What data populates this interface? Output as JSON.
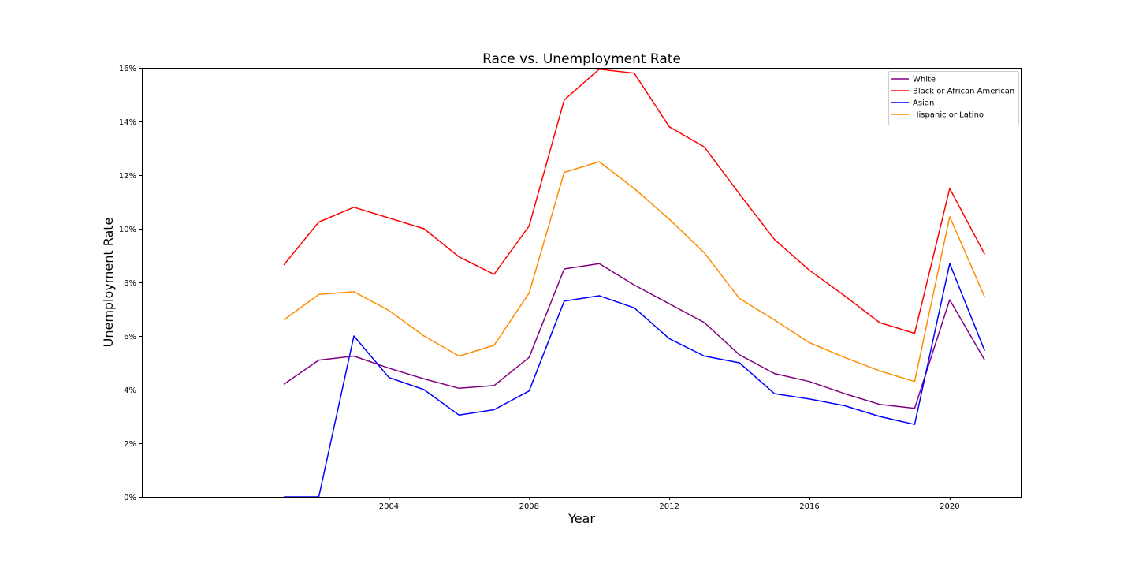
{
  "chart_data": {
    "type": "line",
    "title": "Race vs. Unemployment Rate",
    "xlabel": "Year",
    "ylabel": "Unemployment Rate",
    "xlim": [
      1996.95,
      2022.05
    ],
    "ylim": [
      0,
      16
    ],
    "x_ticks": [
      2004,
      2008,
      2012,
      2016,
      2020
    ],
    "y_ticks": [
      0,
      2,
      4,
      6,
      8,
      10,
      12,
      14,
      16
    ],
    "y_tick_suffix": "%",
    "grid": false,
    "legend_position": "top-right",
    "x": [
      2001,
      2002,
      2003,
      2004,
      2005,
      2006,
      2007,
      2008,
      2009,
      2010,
      2011,
      2012,
      2013,
      2014,
      2015,
      2016,
      2017,
      2018,
      2019,
      2020,
      2021
    ],
    "series": [
      {
        "name": "White",
        "color": "#800080",
        "values": [
          4.2,
          5.1,
          5.25,
          4.8,
          4.4,
          4.05,
          4.15,
          5.2,
          8.5,
          8.7,
          7.9,
          7.2,
          6.5,
          5.3,
          4.6,
          4.3,
          3.85,
          3.45,
          3.3,
          7.35,
          5.1
        ]
      },
      {
        "name": "Black or African American",
        "color": "#ff0000",
        "values": [
          8.65,
          10.25,
          10.8,
          10.4,
          10.0,
          8.95,
          8.3,
          10.1,
          14.8,
          15.95,
          15.8,
          13.8,
          13.05,
          11.3,
          9.6,
          8.45,
          7.5,
          6.5,
          6.1,
          11.5,
          9.05
        ]
      },
      {
        "name": "Asian",
        "color": "#0000ff",
        "values": [
          0.0,
          0.0,
          6.0,
          4.45,
          4.0,
          3.05,
          3.25,
          3.95,
          7.3,
          7.5,
          7.05,
          5.9,
          5.25,
          5.0,
          3.85,
          3.65,
          3.4,
          3.0,
          2.7,
          8.7,
          5.45
        ]
      },
      {
        "name": "Hispanic or Latino",
        "color": "#ff8c00",
        "values": [
          6.6,
          7.55,
          7.65,
          6.95,
          6.0,
          5.25,
          5.65,
          7.6,
          12.1,
          12.5,
          11.5,
          10.35,
          9.1,
          7.4,
          6.6,
          5.75,
          5.2,
          4.7,
          4.3,
          10.45,
          7.45
        ]
      }
    ]
  }
}
